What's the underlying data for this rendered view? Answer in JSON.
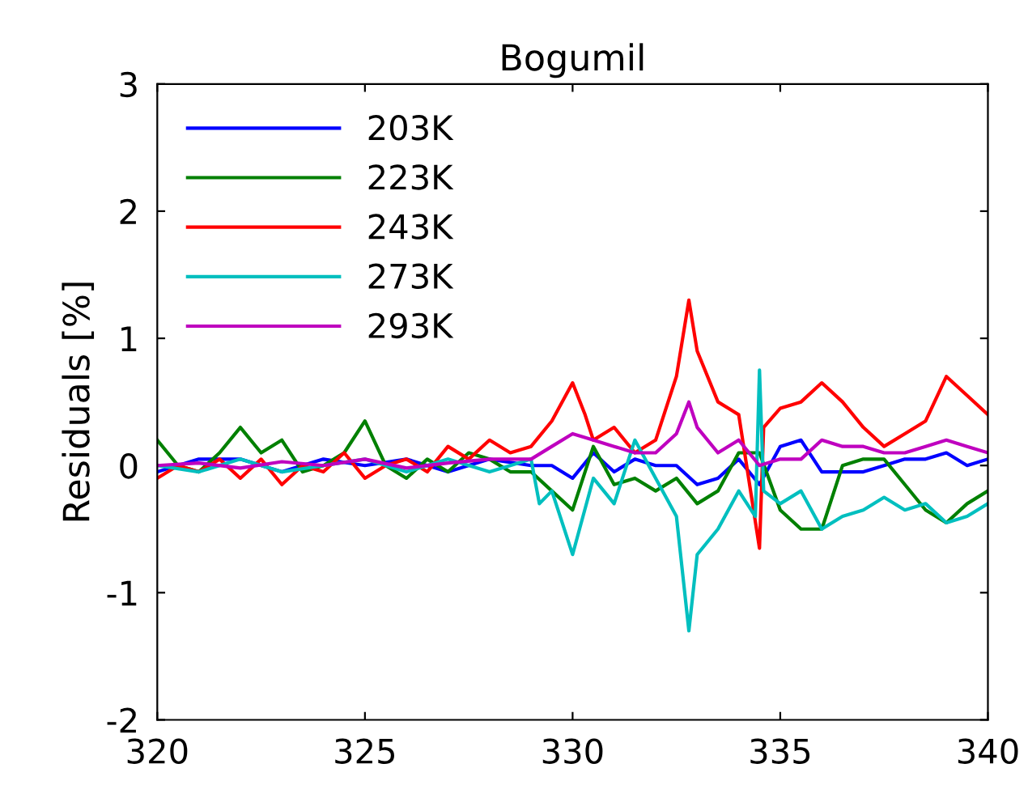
{
  "chart_data": {
    "type": "line",
    "title": "Bogumil",
    "ylabel": "Residuals [%]",
    "xlim": [
      320,
      340
    ],
    "xticks": [
      320,
      325,
      330,
      335,
      340
    ],
    "ylim": [
      -2,
      3
    ],
    "yticks": [
      -2,
      -1,
      0,
      1,
      2,
      3
    ],
    "grid": false,
    "legend": "top left",
    "marker": "none",
    "line_style": "solid",
    "series": [
      {
        "name": "203K",
        "color": "#0000ff",
        "x": [
          320,
          321,
          322,
          323,
          324,
          325,
          326,
          327,
          328,
          329,
          329.5,
          330,
          330.5,
          331,
          331.5,
          332,
          332.5,
          333,
          333.5,
          334,
          334.5,
          335,
          335.5,
          336,
          336.5,
          337,
          337.5,
          338,
          338.5,
          339,
          339.5,
          340
        ],
        "values": [
          -0.05,
          0.05,
          0.05,
          -0.05,
          0.05,
          0,
          0.05,
          -0.05,
          0.05,
          0,
          0,
          -0.1,
          0.1,
          -0.05,
          0.05,
          0,
          0,
          -0.15,
          -0.1,
          0.05,
          -0.15,
          0.15,
          0.2,
          -0.05,
          -0.05,
          -0.05,
          0,
          0.05,
          0.05,
          0.1,
          0,
          0.05
        ]
      },
      {
        "name": "223K",
        "color": "#008000",
        "x": [
          320,
          320.5,
          321,
          321.5,
          322,
          322.5,
          323,
          323.5,
          324,
          324.5,
          325,
          325.5,
          326,
          326.5,
          327,
          327.5,
          328,
          328.5,
          329,
          329.5,
          330,
          330.5,
          331,
          331.5,
          332,
          332.5,
          333,
          333.5,
          334,
          334.5,
          335,
          335.5,
          336,
          336.5,
          337,
          337.5,
          338,
          338.5,
          339,
          339.5,
          340
        ],
        "values": [
          0.2,
          0,
          -0.05,
          0.1,
          0.3,
          0.1,
          0.2,
          -0.05,
          0,
          0.1,
          0.35,
          0,
          -0.1,
          0.05,
          -0.05,
          0.1,
          0.05,
          -0.05,
          -0.05,
          -0.2,
          -0.35,
          0.15,
          -0.15,
          -0.1,
          -0.2,
          -0.1,
          -0.3,
          -0.2,
          0.1,
          0.1,
          -0.35,
          -0.5,
          -0.5,
          0,
          0.05,
          0.05,
          -0.15,
          -0.35,
          -0.45,
          -0.3,
          -0.2
        ]
      },
      {
        "name": "243K",
        "color": "#ff0000",
        "x": [
          320,
          320.5,
          321,
          321.5,
          322,
          322.5,
          323,
          323.5,
          324,
          324.5,
          325,
          325.5,
          326,
          326.5,
          327,
          327.5,
          328,
          328.5,
          329,
          329.5,
          330,
          330.3,
          330.5,
          331,
          331.5,
          332,
          332.5,
          332.8,
          333,
          333.5,
          334,
          334.5,
          334.6,
          335,
          335.5,
          336,
          336.5,
          337,
          337.5,
          338,
          338.5,
          339,
          339.5,
          340
        ],
        "values": [
          -0.1,
          0,
          -0.05,
          0.05,
          -0.1,
          0.05,
          -0.15,
          0,
          -0.05,
          0.1,
          -0.1,
          0,
          0.05,
          -0.05,
          0.15,
          0.05,
          0.2,
          0.1,
          0.15,
          0.35,
          0.65,
          0.4,
          0.2,
          0.3,
          0.1,
          0.2,
          0.7,
          1.3,
          0.9,
          0.5,
          0.4,
          -0.65,
          0.3,
          0.45,
          0.5,
          0.65,
          0.5,
          0.3,
          0.15,
          0.25,
          0.35,
          0.7,
          0.55,
          0.4
        ]
      },
      {
        "name": "273K",
        "color": "#00bfbf",
        "x": [
          320,
          321,
          322,
          323,
          324,
          325,
          326,
          327,
          328,
          328.5,
          329,
          329.2,
          329.5,
          330,
          330.5,
          331,
          331.5,
          332,
          332.5,
          332.8,
          333,
          333.5,
          334,
          334.4,
          334.5,
          334.6,
          335,
          335.5,
          336,
          336.5,
          337,
          337.5,
          338,
          338.5,
          339,
          339.5,
          340
        ],
        "values": [
          0,
          -0.05,
          0.05,
          -0.05,
          0,
          0.05,
          -0.05,
          0.05,
          -0.05,
          0,
          0.05,
          -0.3,
          -0.2,
          -0.7,
          -0.1,
          -0.3,
          0.2,
          -0.1,
          -0.4,
          -1.3,
          -0.7,
          -0.5,
          -0.2,
          -0.4,
          0.75,
          -0.2,
          -0.3,
          -0.2,
          -0.5,
          -0.4,
          -0.35,
          -0.25,
          -0.35,
          -0.3,
          -0.45,
          -0.4,
          -0.3
        ]
      },
      {
        "name": "293K",
        "color": "#bf00bf",
        "x": [
          320,
          321,
          322,
          323,
          324,
          325,
          326,
          327,
          328,
          329,
          329.5,
          330,
          330.5,
          331,
          331.5,
          332,
          332.5,
          332.8,
          333,
          333.5,
          334,
          334.5,
          335,
          335.5,
          336,
          336.5,
          337,
          337.5,
          338,
          338.5,
          339,
          339.5,
          340
        ],
        "values": [
          0,
          0.02,
          -0.02,
          0.03,
          0,
          0.05,
          -0.02,
          0.02,
          0.05,
          0.05,
          0.15,
          0.25,
          0.2,
          0.15,
          0.1,
          0.1,
          0.25,
          0.5,
          0.3,
          0.1,
          0.2,
          0,
          0.05,
          0.05,
          0.2,
          0.15,
          0.15,
          0.1,
          0.1,
          0.15,
          0.2,
          0.15,
          0.1
        ]
      }
    ]
  }
}
